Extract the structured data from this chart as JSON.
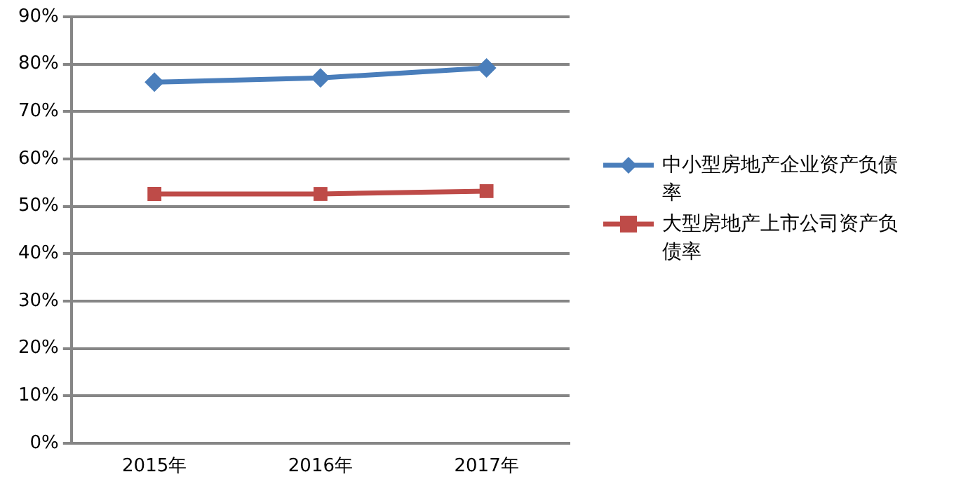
{
  "chart_data": {
    "type": "line",
    "categories": [
      "2015年",
      "2016年",
      "2017年"
    ],
    "series": [
      {
        "name": "中小型房地产企业资产负债率",
        "color": "#4a7ebb",
        "marker": "diamond",
        "values": [
          76.2,
          77.1,
          79.2
        ]
      },
      {
        "name": "大型房地产上市公司资产负债率",
        "color": "#be4b48",
        "marker": "square",
        "values": [
          52.6,
          52.6,
          53.2
        ]
      }
    ],
    "ylim": [
      0,
      90
    ],
    "yticks": [
      {
        "value": 0,
        "label": "0%"
      },
      {
        "value": 10,
        "label": "10%"
      },
      {
        "value": 20,
        "label": "20%"
      },
      {
        "value": 30,
        "label": "30%"
      },
      {
        "value": 40,
        "label": "40%"
      },
      {
        "value": 50,
        "label": "50%"
      },
      {
        "value": 60,
        "label": "60%"
      },
      {
        "value": 70,
        "label": "70%"
      },
      {
        "value": 80,
        "label": "80%"
      },
      {
        "value": 90,
        "label": "90%"
      }
    ],
    "grid": "y",
    "legend": "right"
  }
}
